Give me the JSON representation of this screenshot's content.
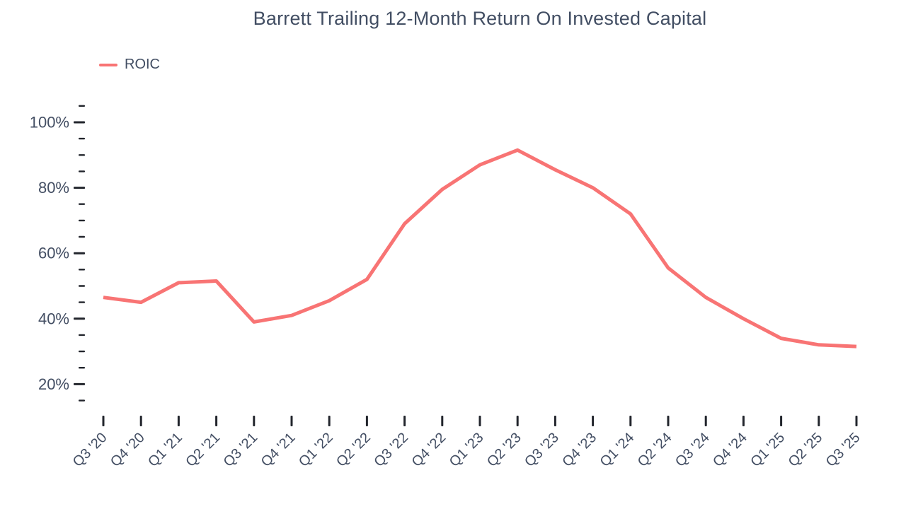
{
  "chart_data": {
    "type": "line",
    "title": "Barrett Trailing 12-Month Return On Invested Capital",
    "xlabel": "",
    "ylabel": "",
    "legend": {
      "position": "top-left",
      "items": [
        {
          "label": "ROIC",
          "color": "#f87474"
        }
      ]
    },
    "categories": [
      "Q3 '20",
      "Q4 '20",
      "Q1 '21",
      "Q2 '21",
      "Q3 '21",
      "Q4 '21",
      "Q1 '22",
      "Q2 '22",
      "Q3 '22",
      "Q4 '22",
      "Q1 '23",
      "Q2 '23",
      "Q3 '23",
      "Q4 '23",
      "Q1 '24",
      "Q2 '24",
      "Q3 '24",
      "Q4 '24",
      "Q1 '25",
      "Q2 '25",
      "Q3 '25"
    ],
    "series": [
      {
        "name": "ROIC",
        "color": "#f87474",
        "values": [
          46.5,
          45,
          51,
          51.5,
          39,
          41,
          45.5,
          52,
          69,
          79.5,
          87,
          91.5,
          85.5,
          80,
          72,
          55.5,
          46.5,
          40,
          34,
          32,
          31.5
        ]
      }
    ],
    "y_axis": {
      "unit": "%",
      "min": 15,
      "max": 105,
      "major_ticks": [
        20,
        40,
        60,
        80,
        100
      ],
      "major_tick_labels": [
        "20%",
        "40%",
        "60%",
        "80%",
        "100%"
      ],
      "minor_tick_step": 5
    },
    "grid": false,
    "colors": {
      "text": "#434e63",
      "tick": "#22252c",
      "line": "#f87474"
    }
  }
}
